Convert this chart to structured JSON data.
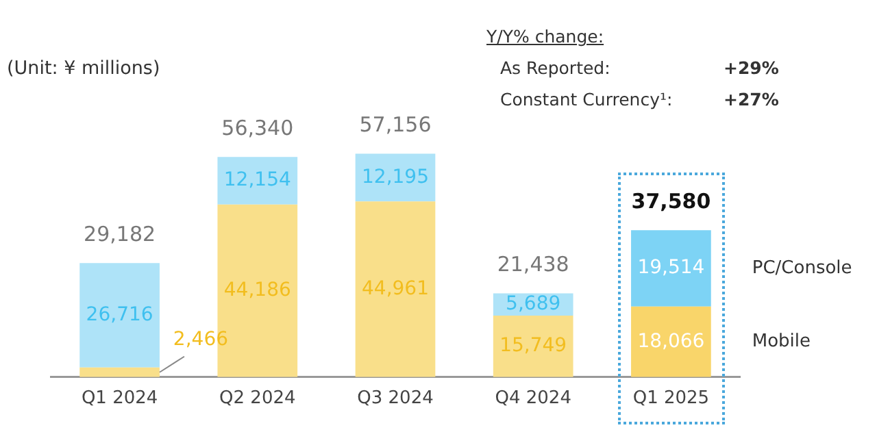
{
  "chart_data": {
    "type": "bar",
    "stacked": true,
    "categories": [
      "Q1 2024",
      "Q2 2024",
      "Q3 2024",
      "Q4 2024",
      "Q1 2025"
    ],
    "series": [
      {
        "name": "Mobile",
        "colors": [
          "#f9df8a",
          "#f9df8a",
          "#f9df8a",
          "#f9df8a",
          "#f9d56a"
        ],
        "values": [
          2466,
          44186,
          44961,
          15749,
          18066
        ],
        "value_labels": [
          "2,466",
          "44,186",
          "44,961",
          "15,749",
          "18,066"
        ]
      },
      {
        "name": "PC/Console",
        "colors": [
          "#aee3f8",
          "#aee3f8",
          "#aee3f8",
          "#aee3f8",
          "#7dd3f5"
        ],
        "values": [
          26716,
          12154,
          12195,
          5689,
          19514
        ],
        "value_labels": [
          "26,716",
          "12,154",
          "12,195",
          "5,689",
          "19,514"
        ]
      }
    ],
    "totals": [
      "29,182",
      "56,340",
      "57,156",
      "21,438",
      "37,580"
    ],
    "legend": "right",
    "grid": false,
    "annotations": [
      "(Unit: ¥ millions)",
      "Y/Y% change:",
      "As Reported:",
      "+29%",
      "Constant Currency¹:",
      "+27%"
    ]
  }
}
